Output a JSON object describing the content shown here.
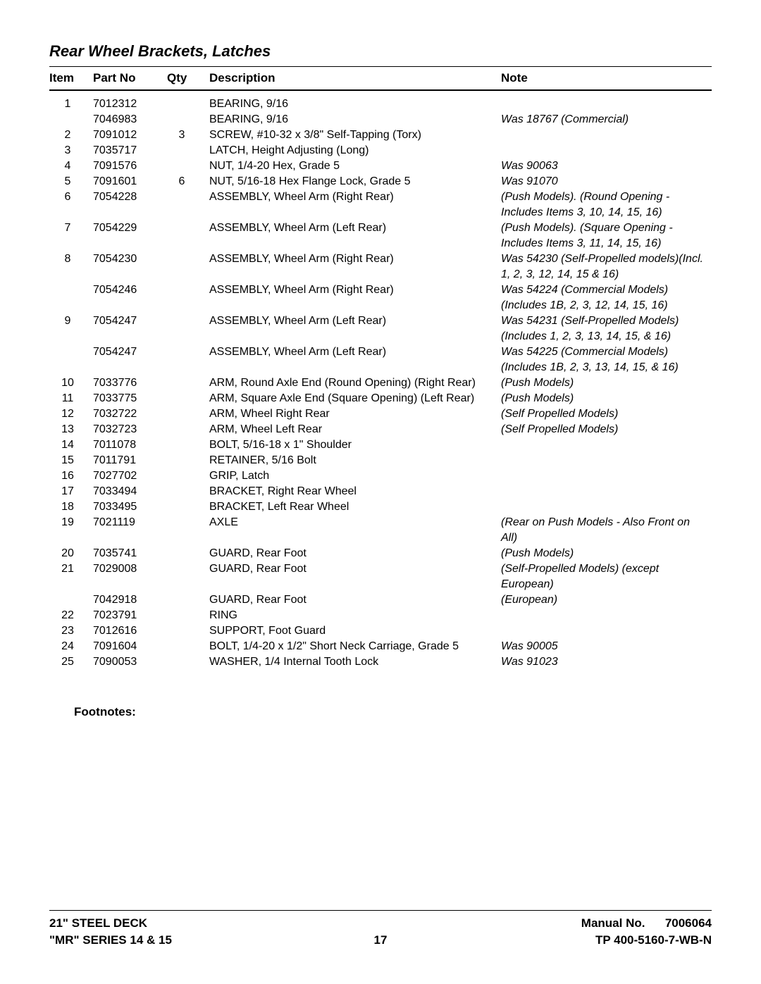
{
  "title": "Rear Wheel Brackets, Latches",
  "headers": {
    "item": "Item",
    "part": "Part No",
    "qty": "Qty",
    "desc": "Description",
    "note": "Note"
  },
  "rows": [
    {
      "item": "1",
      "part": "7012312",
      "qty": "",
      "desc": "BEARING, 9/16",
      "note": ""
    },
    {
      "item": "",
      "part": "7046983",
      "qty": "",
      "desc": "BEARING, 9/16",
      "note": "Was 18767 (Commercial)"
    },
    {
      "item": "2",
      "part": "7091012",
      "qty": "3",
      "desc": "SCREW, #10-32 x 3/8\" Self-Tapping (Torx)",
      "note": ""
    },
    {
      "item": "3",
      "part": "7035717",
      "qty": "",
      "desc": "LATCH, Height Adjusting (Long)",
      "note": ""
    },
    {
      "item": "4",
      "part": "7091576",
      "qty": "",
      "desc": "NUT, 1/4-20 Hex, Grade 5",
      "note": "Was 90063"
    },
    {
      "item": "5",
      "part": "7091601",
      "qty": "6",
      "desc": "NUT, 5/16-18 Hex Flange Lock, Grade 5",
      "note": "Was 91070"
    },
    {
      "item": "6",
      "part": "7054228",
      "qty": "",
      "desc": "ASSEMBLY, Wheel Arm (Right Rear)",
      "note": "(Push Models). (Round Opening - Includes Items 3, 10, 14, 15, 16)"
    },
    {
      "item": "7",
      "part": "7054229",
      "qty": "",
      "desc": "ASSEMBLY, Wheel Arm (Left Rear)",
      "note": "(Push Models). (Square Opening - Includes Items 3, 11, 14, 15, 16)"
    },
    {
      "item": "8",
      "part": "7054230",
      "qty": "",
      "desc": "ASSEMBLY, Wheel Arm (Right Rear)",
      "note": "Was 54230 (Self-Propelled models)(Incl. 1, 2, 3, 12, 14, 15 & 16)"
    },
    {
      "item": "",
      "part": "7054246",
      "qty": "",
      "desc": "ASSEMBLY, Wheel Arm (Right Rear)",
      "note": "Was 54224 (Commercial Models)(Includes 1B, 2, 3, 12, 14, 15, 16)"
    },
    {
      "item": "9",
      "part": "7054247",
      "qty": "",
      "desc": "ASSEMBLY, Wheel Arm (Left Rear)",
      "note": "Was 54231 (Self-Propelled Models)(Includes 1, 2, 3, 13, 14, 15, & 16)"
    },
    {
      "item": "",
      "part": "7054247",
      "qty": "",
      "desc": "ASSEMBLY, Wheel Arm (Left Rear)",
      "note": "Was 54225 (Commercial Models)(Includes 1B, 2, 3, 13, 14, 15, & 16)"
    },
    {
      "item": "10",
      "part": "7033776",
      "qty": "",
      "desc": "ARM, Round Axle End (Round Opening) (Right Rear)",
      "note": "(Push Models)"
    },
    {
      "item": "11",
      "part": "7033775",
      "qty": "",
      "desc": "ARM, Square Axle End (Square Opening) (Left Rear)",
      "note": "(Push Models)"
    },
    {
      "item": "12",
      "part": "7032722",
      "qty": "",
      "desc": "ARM, Wheel Right Rear",
      "note": "(Self Propelled Models)"
    },
    {
      "item": "13",
      "part": "7032723",
      "qty": "",
      "desc": "ARM, Wheel Left Rear",
      "note": "(Self Propelled Models)"
    },
    {
      "item": "14",
      "part": "7011078",
      "qty": "",
      "desc": "BOLT, 5/16-18 x 1\" Shoulder",
      "note": ""
    },
    {
      "item": "15",
      "part": "7011791",
      "qty": "",
      "desc": "RETAINER, 5/16 Bolt",
      "note": ""
    },
    {
      "item": "16",
      "part": "7027702",
      "qty": "",
      "desc": "GRIP, Latch",
      "note": ""
    },
    {
      "item": "17",
      "part": "7033494",
      "qty": "",
      "desc": "BRACKET, Right Rear Wheel",
      "note": ""
    },
    {
      "item": "18",
      "part": "7033495",
      "qty": "",
      "desc": "BRACKET, Left Rear Wheel",
      "note": ""
    },
    {
      "item": "19",
      "part": "7021119",
      "qty": "",
      "desc": "AXLE",
      "note": "(Rear on Push Models - Also Front on All)"
    },
    {
      "item": "20",
      "part": "7035741",
      "qty": "",
      "desc": "GUARD, Rear Foot",
      "note": "(Push Models)"
    },
    {
      "item": "21",
      "part": "7029008",
      "qty": "",
      "desc": "GUARD, Rear Foot",
      "note": "(Self-Propelled Models) (except European)"
    },
    {
      "item": "",
      "part": "7042918",
      "qty": "",
      "desc": "GUARD, Rear Foot",
      "note": "(European)"
    },
    {
      "item": "22",
      "part": "7023791",
      "qty": "",
      "desc": "RING",
      "note": ""
    },
    {
      "item": "23",
      "part": "7012616",
      "qty": "",
      "desc": "SUPPORT, Foot Guard",
      "note": ""
    },
    {
      "item": "24",
      "part": "7091604",
      "qty": "",
      "desc": "BOLT, 1/4-20 x 1/2\" Short Neck Carriage, Grade 5",
      "note": "Was 90005"
    },
    {
      "item": "25",
      "part": "7090053",
      "qty": "",
      "desc": "WASHER, 1/4 Internal Tooth Lock",
      "note": "Was 91023"
    }
  ],
  "footnotes_label": "Footnotes:",
  "footer": {
    "left1": "21\" STEEL DECK",
    "left2": "\"MR\" SERIES 14 & 15",
    "page": "17",
    "right1a": "Manual No.",
    "right1b": "7006064",
    "right2": "TP 400-5160-7-WB-N"
  }
}
